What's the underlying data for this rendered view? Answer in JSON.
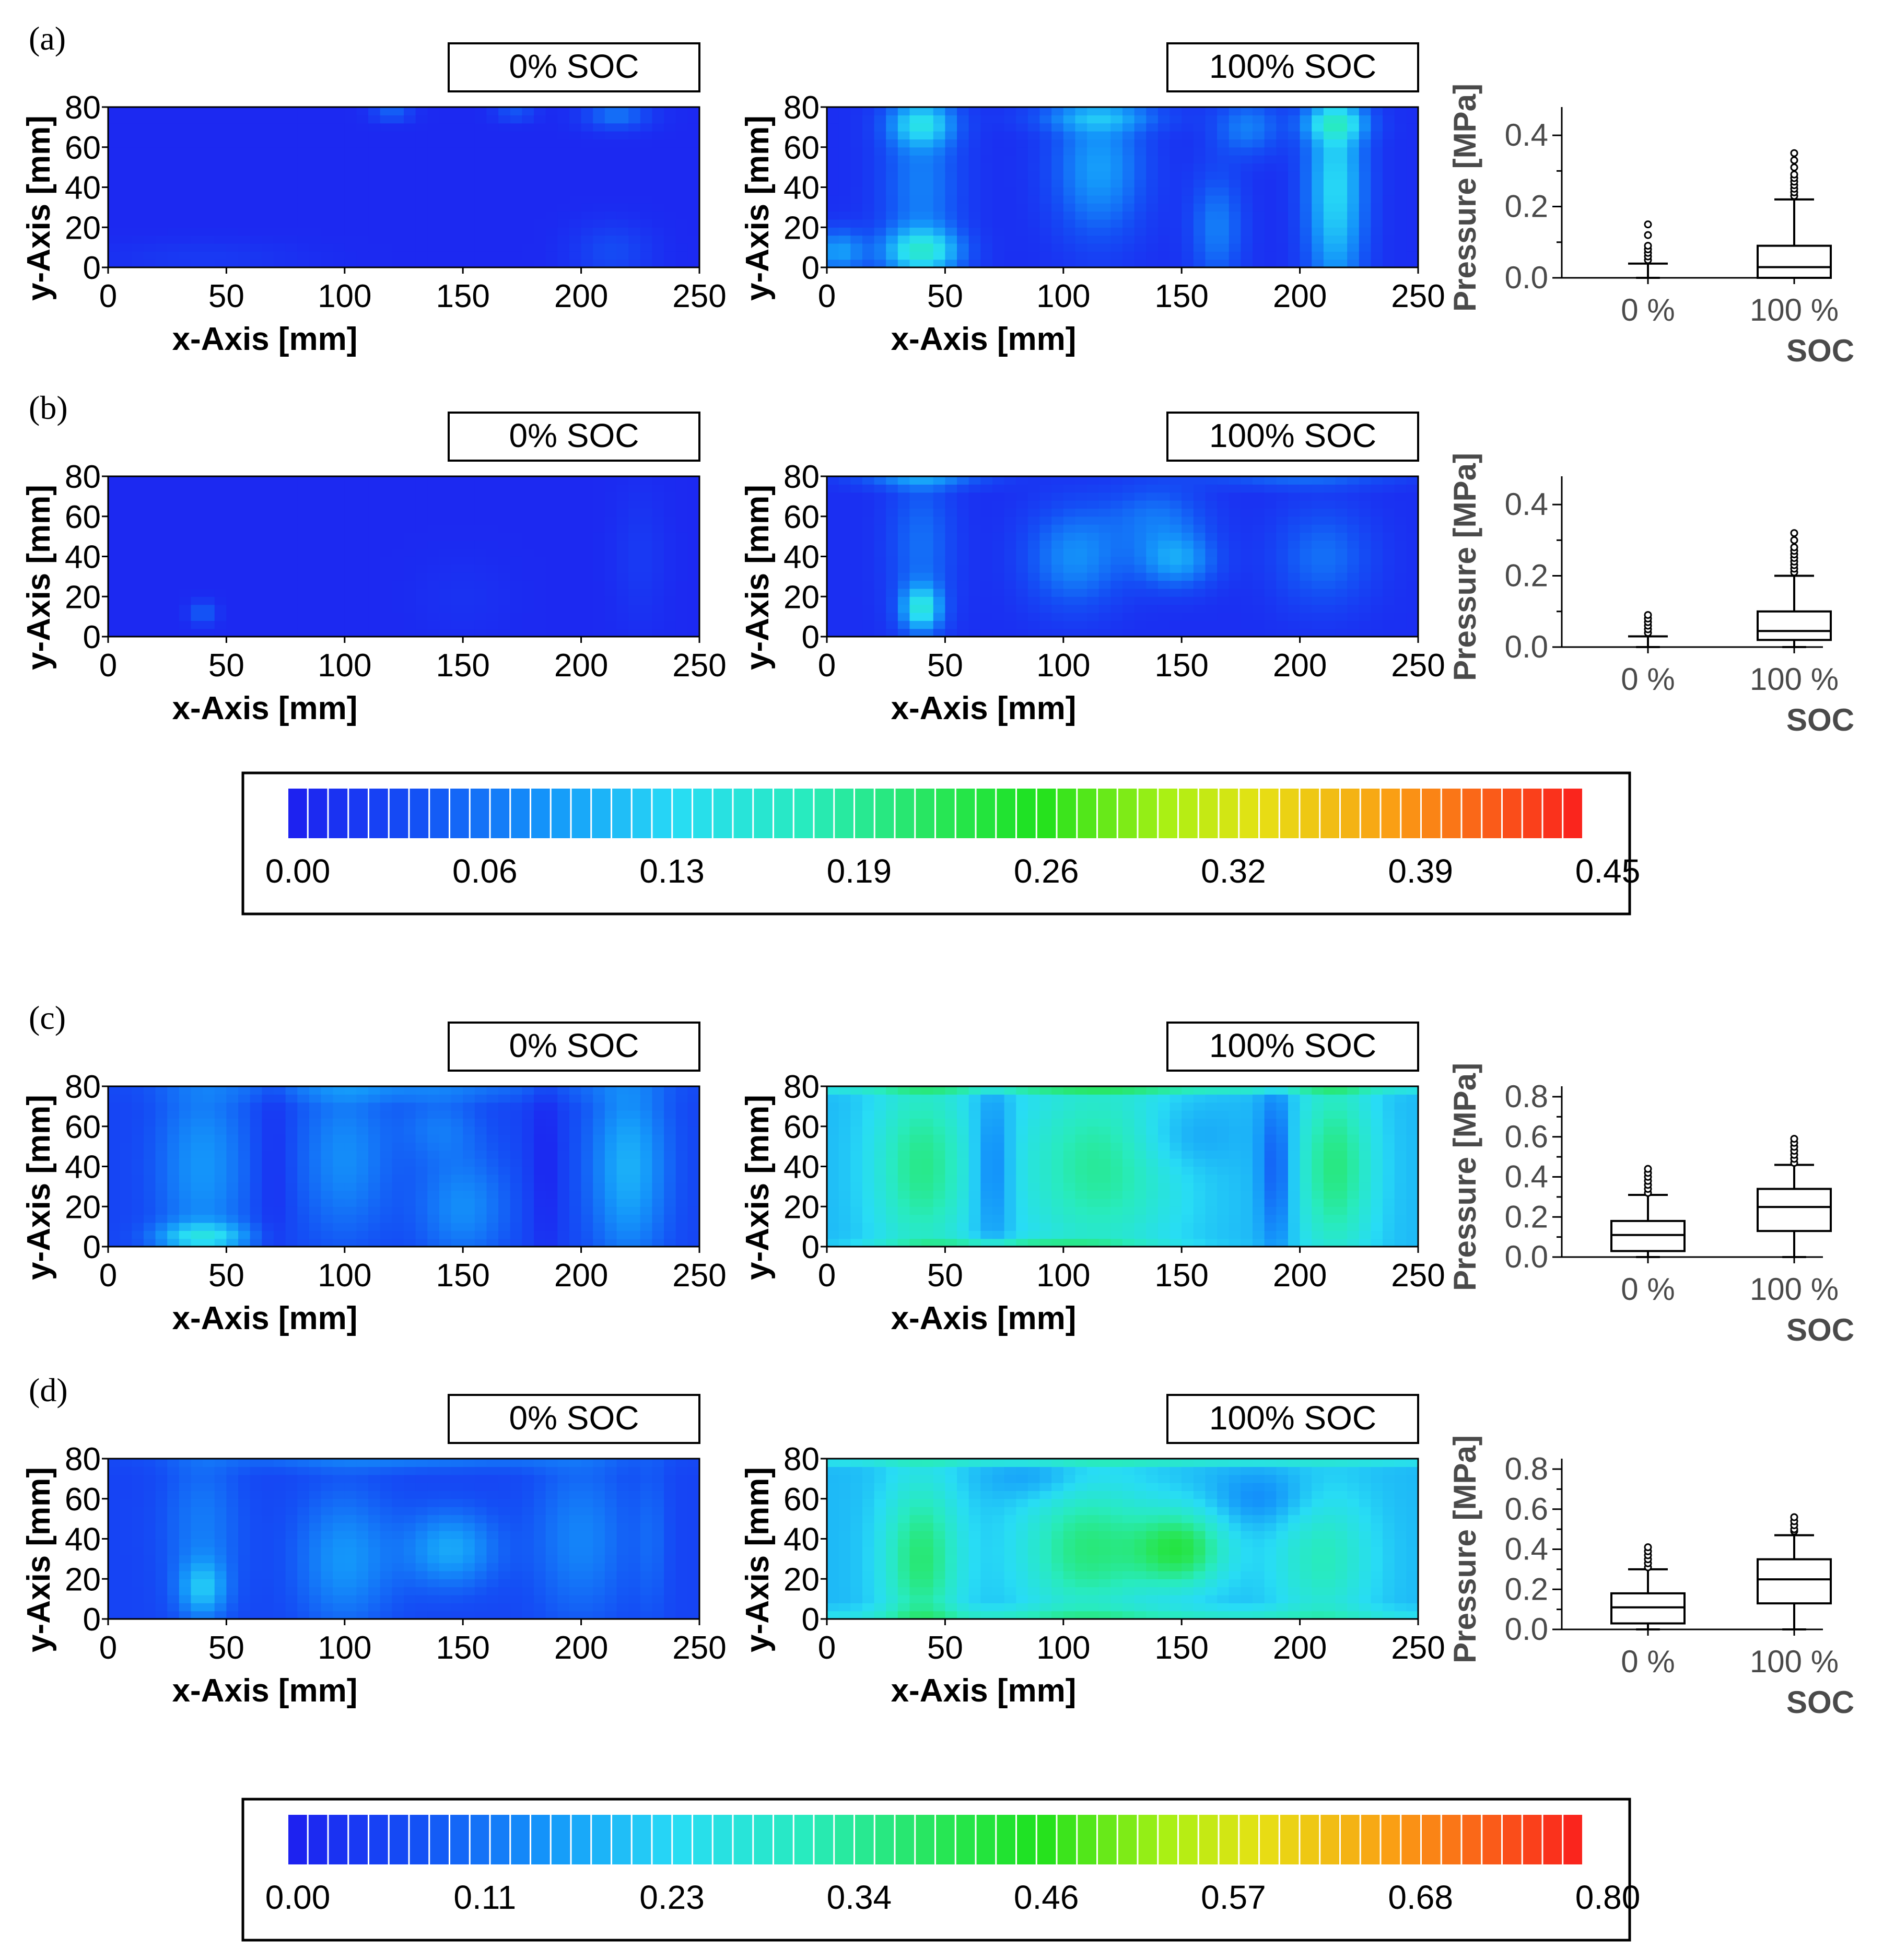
{
  "chart_data": [
    {
      "type": "heatmap",
      "panel": "(a)",
      "title": "0% SOC",
      "xlabel": "x-Axis [mm]",
      "ylabel": "y-Axis [mm]",
      "xlim": [
        0,
        250
      ],
      "ylim": [
        0,
        80
      ],
      "xticks": [
        "0",
        "50",
        "100",
        "150",
        "200",
        "250"
      ],
      "yticks": [
        "0",
        "20",
        "40",
        "60",
        "80"
      ],
      "scale": 0.45,
      "base": 0.01,
      "hotspots": [
        {
          "x": 120,
          "y": 77,
          "sx": 6,
          "sy": 3,
          "v": 0.05
        },
        {
          "x": 172,
          "y": 77,
          "sx": 6,
          "sy": 3,
          "v": 0.04
        },
        {
          "x": 215,
          "y": 76,
          "sx": 10,
          "sy": 5,
          "v": 0.06
        },
        {
          "x": 213,
          "y": 8,
          "sx": 12,
          "sy": 10,
          "v": 0.03
        },
        {
          "x": 40,
          "y": 5,
          "sx": 30,
          "sy": 6,
          "v": 0.015
        }
      ]
    },
    {
      "type": "heatmap",
      "panel": "(a)",
      "title": "100% SOC",
      "xlabel": "x-Axis [mm]",
      "ylabel": "y-Axis [mm]",
      "xlim": [
        0,
        250
      ],
      "ylim": [
        0,
        80
      ],
      "xticks": [
        "0",
        "50",
        "100",
        "150",
        "200",
        "250"
      ],
      "yticks": [
        "0",
        "20",
        "40",
        "60",
        "80"
      ],
      "scale": 0.45,
      "base": 0.015,
      "hotspots": [
        {
          "x": 40,
          "y": 72,
          "sx": 10,
          "sy": 8,
          "v": 0.1
        },
        {
          "x": 40,
          "y": 8,
          "sx": 12,
          "sy": 8,
          "v": 0.12
        },
        {
          "x": 40,
          "y": 40,
          "sx": 12,
          "sy": 30,
          "v": 0.06
        },
        {
          "x": 115,
          "y": 50,
          "sx": 14,
          "sy": 25,
          "v": 0.08
        },
        {
          "x": 115,
          "y": 75,
          "sx": 20,
          "sy": 5,
          "v": 0.06
        },
        {
          "x": 165,
          "y": 20,
          "sx": 8,
          "sy": 20,
          "v": 0.06
        },
        {
          "x": 178,
          "y": 70,
          "sx": 10,
          "sy": 10,
          "v": 0.06
        },
        {
          "x": 215,
          "y": 40,
          "sx": 9,
          "sy": 40,
          "v": 0.12
        },
        {
          "x": 215,
          "y": 72,
          "sx": 10,
          "sy": 6,
          "v": 0.08
        },
        {
          "x": 5,
          "y": 8,
          "sx": 8,
          "sy": 8,
          "v": 0.08
        }
      ]
    },
    {
      "type": "box",
      "panel": "(a)",
      "ylabel": "Pressure [MPa]",
      "xlabel": "SOC",
      "ylim": [
        0,
        0.45
      ],
      "yticks": [
        "0.0",
        "0.2",
        "0.4"
      ],
      "ytick_values": [
        0,
        0.2,
        0.4
      ],
      "categories": [
        "0 %",
        "100 %"
      ],
      "boxes": [
        {
          "min": 0.0,
          "q1": 0.0,
          "median": 0.0,
          "q3": 0.0,
          "max": 0.04,
          "outliers": [
            0.05,
            0.06,
            0.07,
            0.08,
            0.09,
            0.12,
            0.15
          ]
        },
        {
          "min": 0.0,
          "q1": 0.0,
          "median": 0.03,
          "q3": 0.09,
          "max": 0.22,
          "outliers": [
            0.23,
            0.24,
            0.25,
            0.26,
            0.27,
            0.28,
            0.29,
            0.31,
            0.33,
            0.35
          ]
        }
      ]
    },
    {
      "type": "heatmap",
      "panel": "(b)",
      "title": "0% SOC",
      "xlabel": "x-Axis [mm]",
      "ylabel": "y-Axis [mm]",
      "xlim": [
        0,
        250
      ],
      "ylim": [
        0,
        80
      ],
      "xticks": [
        "0",
        "50",
        "100",
        "150",
        "200",
        "250"
      ],
      "yticks": [
        "0",
        "20",
        "40",
        "60",
        "80"
      ],
      "scale": 0.45,
      "base": 0.01,
      "hotspots": [
        {
          "x": 40,
          "y": 12,
          "sx": 4,
          "sy": 4,
          "v": 0.05
        },
        {
          "x": 225,
          "y": 40,
          "sx": 8,
          "sy": 25,
          "v": 0.015
        },
        {
          "x": 150,
          "y": 20,
          "sx": 15,
          "sy": 15,
          "v": 0.008
        }
      ]
    },
    {
      "type": "heatmap",
      "panel": "(b)",
      "title": "100% SOC",
      "xlabel": "x-Axis [mm]",
      "ylabel": "y-Axis [mm]",
      "xlim": [
        0,
        250
      ],
      "ylim": [
        0,
        80
      ],
      "xticks": [
        "0",
        "50",
        "100",
        "150",
        "200",
        "250"
      ],
      "yticks": [
        "0",
        "20",
        "40",
        "60",
        "80"
      ],
      "scale": 0.45,
      "base": 0.015,
      "hotspots": [
        {
          "x": 40,
          "y": 14,
          "sx": 6,
          "sy": 8,
          "v": 0.12
        },
        {
          "x": 40,
          "y": 45,
          "sx": 10,
          "sy": 28,
          "v": 0.05
        },
        {
          "x": 105,
          "y": 40,
          "sx": 15,
          "sy": 18,
          "v": 0.07
        },
        {
          "x": 148,
          "y": 38,
          "sx": 12,
          "sy": 10,
          "v": 0.08
        },
        {
          "x": 140,
          "y": 60,
          "sx": 15,
          "sy": 12,
          "v": 0.05
        },
        {
          "x": 210,
          "y": 40,
          "sx": 15,
          "sy": 18,
          "v": 0.05
        },
        {
          "x": 40,
          "y": 78,
          "sx": 20,
          "sy": 3,
          "v": 0.06
        },
        {
          "x": 200,
          "y": 78,
          "sx": 30,
          "sy": 3,
          "v": 0.04
        }
      ]
    },
    {
      "type": "box",
      "panel": "(b)",
      "ylabel": "Pressure [MPa]",
      "xlabel": "SOC",
      "ylim": [
        0,
        0.45
      ],
      "yticks": [
        "0.0",
        "0.2",
        "0.4"
      ],
      "ytick_values": [
        0,
        0.2,
        0.4
      ],
      "categories": [
        "0 %",
        "100 %"
      ],
      "boxes": [
        {
          "min": 0.0,
          "q1": 0.0,
          "median": 0.0,
          "q3": 0.0,
          "max": 0.03,
          "outliers": [
            0.04,
            0.05,
            0.06,
            0.07,
            0.08,
            0.09
          ]
        },
        {
          "min": 0.0,
          "q1": 0.02,
          "median": 0.045,
          "q3": 0.1,
          "max": 0.2,
          "outliers": [
            0.21,
            0.22,
            0.23,
            0.24,
            0.25,
            0.26,
            0.27,
            0.28,
            0.3,
            0.32
          ]
        }
      ]
    },
    {
      "type": "colorbar",
      "ticks": [
        "0.00",
        "0.06",
        "0.13",
        "0.19",
        "0.26",
        "0.32",
        "0.39",
        "0.45"
      ],
      "range": [
        0,
        0.45
      ]
    },
    {
      "type": "heatmap",
      "panel": "(c)",
      "title": "0% SOC",
      "xlabel": "x-Axis [mm]",
      "ylabel": "y-Axis [mm]",
      "xlim": [
        0,
        250
      ],
      "ylim": [
        0,
        80
      ],
      "xticks": [
        "0",
        "50",
        "100",
        "150",
        "200",
        "250"
      ],
      "yticks": [
        "0",
        "20",
        "40",
        "60",
        "80"
      ],
      "scale": 0.8,
      "base": 0.06,
      "hotspots": [
        {
          "x": 40,
          "y": 40,
          "sx": 14,
          "sy": 35,
          "v": 0.1
        },
        {
          "x": 40,
          "y": 5,
          "sx": 14,
          "sy": 5,
          "v": 0.15
        },
        {
          "x": 100,
          "y": 45,
          "sx": 14,
          "sy": 30,
          "v": 0.09
        },
        {
          "x": 150,
          "y": 20,
          "sx": 14,
          "sy": 20,
          "v": 0.09
        },
        {
          "x": 140,
          "y": 60,
          "sx": 12,
          "sy": 12,
          "v": 0.06
        },
        {
          "x": 220,
          "y": 40,
          "sx": 12,
          "sy": 35,
          "v": 0.13
        },
        {
          "x": 125,
          "y": 78,
          "sx": 60,
          "sy": 4,
          "v": 0.06
        },
        {
          "x": 185,
          "y": 40,
          "sx": 5,
          "sy": 40,
          "v": -0.05
        },
        {
          "x": 70,
          "y": 40,
          "sx": 5,
          "sy": 40,
          "v": -0.04
        }
      ]
    },
    {
      "type": "heatmap",
      "panel": "(c)",
      "title": "100% SOC",
      "xlabel": "x-Axis [mm]",
      "ylabel": "y-Axis [mm]",
      "xlim": [
        0,
        250
      ],
      "ylim": [
        0,
        80
      ],
      "xticks": [
        "0",
        "50",
        "100",
        "150",
        "200",
        "250"
      ],
      "yticks": [
        "0",
        "20",
        "40",
        "60",
        "80"
      ],
      "scale": 0.8,
      "base": 0.2,
      "hotspots": [
        {
          "x": 40,
          "y": 40,
          "sx": 15,
          "sy": 35,
          "v": 0.16
        },
        {
          "x": 115,
          "y": 40,
          "sx": 25,
          "sy": 35,
          "v": 0.15
        },
        {
          "x": 215,
          "y": 40,
          "sx": 12,
          "sy": 35,
          "v": 0.17
        },
        {
          "x": 150,
          "y": 55,
          "sx": 15,
          "sy": 12,
          "v": -0.05
        },
        {
          "x": 70,
          "y": 40,
          "sx": 6,
          "sy": 30,
          "v": -0.1
        },
        {
          "x": 190,
          "y": 40,
          "sx": 5,
          "sy": 30,
          "v": -0.12
        },
        {
          "x": 125,
          "y": 79,
          "sx": 120,
          "sy": 2,
          "v": 0.12
        },
        {
          "x": 80,
          "y": 2,
          "sx": 40,
          "sy": 2,
          "v": 0.1
        }
      ]
    },
    {
      "type": "box",
      "panel": "(c)",
      "ylabel": "Pressure [MPa]",
      "xlabel": "SOC",
      "ylim": [
        0,
        0.8
      ],
      "yticks": [
        "0.0",
        "0.2",
        "0.4",
        "0.6",
        "0.8"
      ],
      "ytick_values": [
        0,
        0.2,
        0.4,
        0.6,
        0.8
      ],
      "categories": [
        "0 %",
        "100 %"
      ],
      "boxes": [
        {
          "min": 0.0,
          "q1": 0.03,
          "median": 0.11,
          "q3": 0.18,
          "max": 0.31,
          "outliers": [
            0.32,
            0.34,
            0.36,
            0.38,
            0.4,
            0.42,
            0.44
          ]
        },
        {
          "min": 0.0,
          "q1": 0.13,
          "median": 0.25,
          "q3": 0.34,
          "max": 0.46,
          "outliers": [
            0.47,
            0.49,
            0.51,
            0.53,
            0.55,
            0.57,
            0.59
          ]
        }
      ]
    },
    {
      "type": "heatmap",
      "panel": "(d)",
      "title": "0% SOC",
      "xlabel": "x-Axis [mm]",
      "ylabel": "y-Axis [mm]",
      "xlim": [
        0,
        250
      ],
      "ylim": [
        0,
        80
      ],
      "xticks": [
        "0",
        "50",
        "100",
        "150",
        "200",
        "250"
      ],
      "yticks": [
        "0",
        "20",
        "40",
        "60",
        "80"
      ],
      "scale": 0.8,
      "base": 0.06,
      "hotspots": [
        {
          "x": 40,
          "y": 15,
          "sx": 7,
          "sy": 10,
          "v": 0.12
        },
        {
          "x": 40,
          "y": 45,
          "sx": 12,
          "sy": 30,
          "v": 0.07
        },
        {
          "x": 100,
          "y": 30,
          "sx": 15,
          "sy": 25,
          "v": 0.1
        },
        {
          "x": 145,
          "y": 35,
          "sx": 14,
          "sy": 14,
          "v": 0.12
        },
        {
          "x": 200,
          "y": 40,
          "sx": 15,
          "sy": 30,
          "v": 0.08
        },
        {
          "x": 230,
          "y": 40,
          "sx": 5,
          "sy": 30,
          "v": 0.04
        },
        {
          "x": 125,
          "y": 78,
          "sx": 60,
          "sy": 3,
          "v": 0.06
        }
      ]
    },
    {
      "type": "heatmap",
      "panel": "(d)",
      "title": "100% SOC",
      "xlabel": "x-Axis [mm]",
      "ylabel": "y-Axis [mm]",
      "xlim": [
        0,
        250
      ],
      "ylim": [
        0,
        80
      ],
      "xticks": [
        "0",
        "50",
        "100",
        "150",
        "200",
        "250"
      ],
      "yticks": [
        "0",
        "20",
        "40",
        "60",
        "80"
      ],
      "scale": 0.8,
      "base": 0.2,
      "hotspots": [
        {
          "x": 40,
          "y": 30,
          "sx": 12,
          "sy": 30,
          "v": 0.18
        },
        {
          "x": 110,
          "y": 35,
          "sx": 20,
          "sy": 25,
          "v": 0.17
        },
        {
          "x": 150,
          "y": 35,
          "sx": 14,
          "sy": 14,
          "v": 0.2
        },
        {
          "x": 210,
          "y": 30,
          "sx": 15,
          "sy": 25,
          "v": 0.12
        },
        {
          "x": 185,
          "y": 60,
          "sx": 15,
          "sy": 10,
          "v": -0.06
        },
        {
          "x": 90,
          "y": 70,
          "sx": 15,
          "sy": 8,
          "v": -0.05
        },
        {
          "x": 125,
          "y": 79,
          "sx": 120,
          "sy": 2,
          "v": 0.1
        },
        {
          "x": 125,
          "y": 3,
          "sx": 110,
          "sy": 2,
          "v": 0.1
        }
      ]
    },
    {
      "type": "box",
      "panel": "(d)",
      "ylabel": "Pressure [MPa]",
      "xlabel": "SOC",
      "ylim": [
        0,
        0.8
      ],
      "yticks": [
        "0.0",
        "0.2",
        "0.4",
        "0.6",
        "0.8"
      ],
      "ytick_values": [
        0,
        0.2,
        0.4,
        0.6,
        0.8
      ],
      "categories": [
        "0 %",
        "100 %"
      ],
      "boxes": [
        {
          "min": 0.0,
          "q1": 0.03,
          "median": 0.11,
          "q3": 0.18,
          "max": 0.3,
          "outliers": [
            0.31,
            0.33,
            0.35,
            0.37,
            0.39,
            0.41
          ]
        },
        {
          "min": 0.0,
          "q1": 0.13,
          "median": 0.25,
          "q3": 0.35,
          "max": 0.47,
          "outliers": [
            0.49,
            0.5,
            0.52,
            0.54,
            0.56
          ]
        }
      ]
    },
    {
      "type": "colorbar",
      "ticks": [
        "0.00",
        "0.11",
        "0.23",
        "0.34",
        "0.46",
        "0.57",
        "0.68",
        "0.80"
      ],
      "range": [
        0,
        0.8
      ]
    }
  ]
}
